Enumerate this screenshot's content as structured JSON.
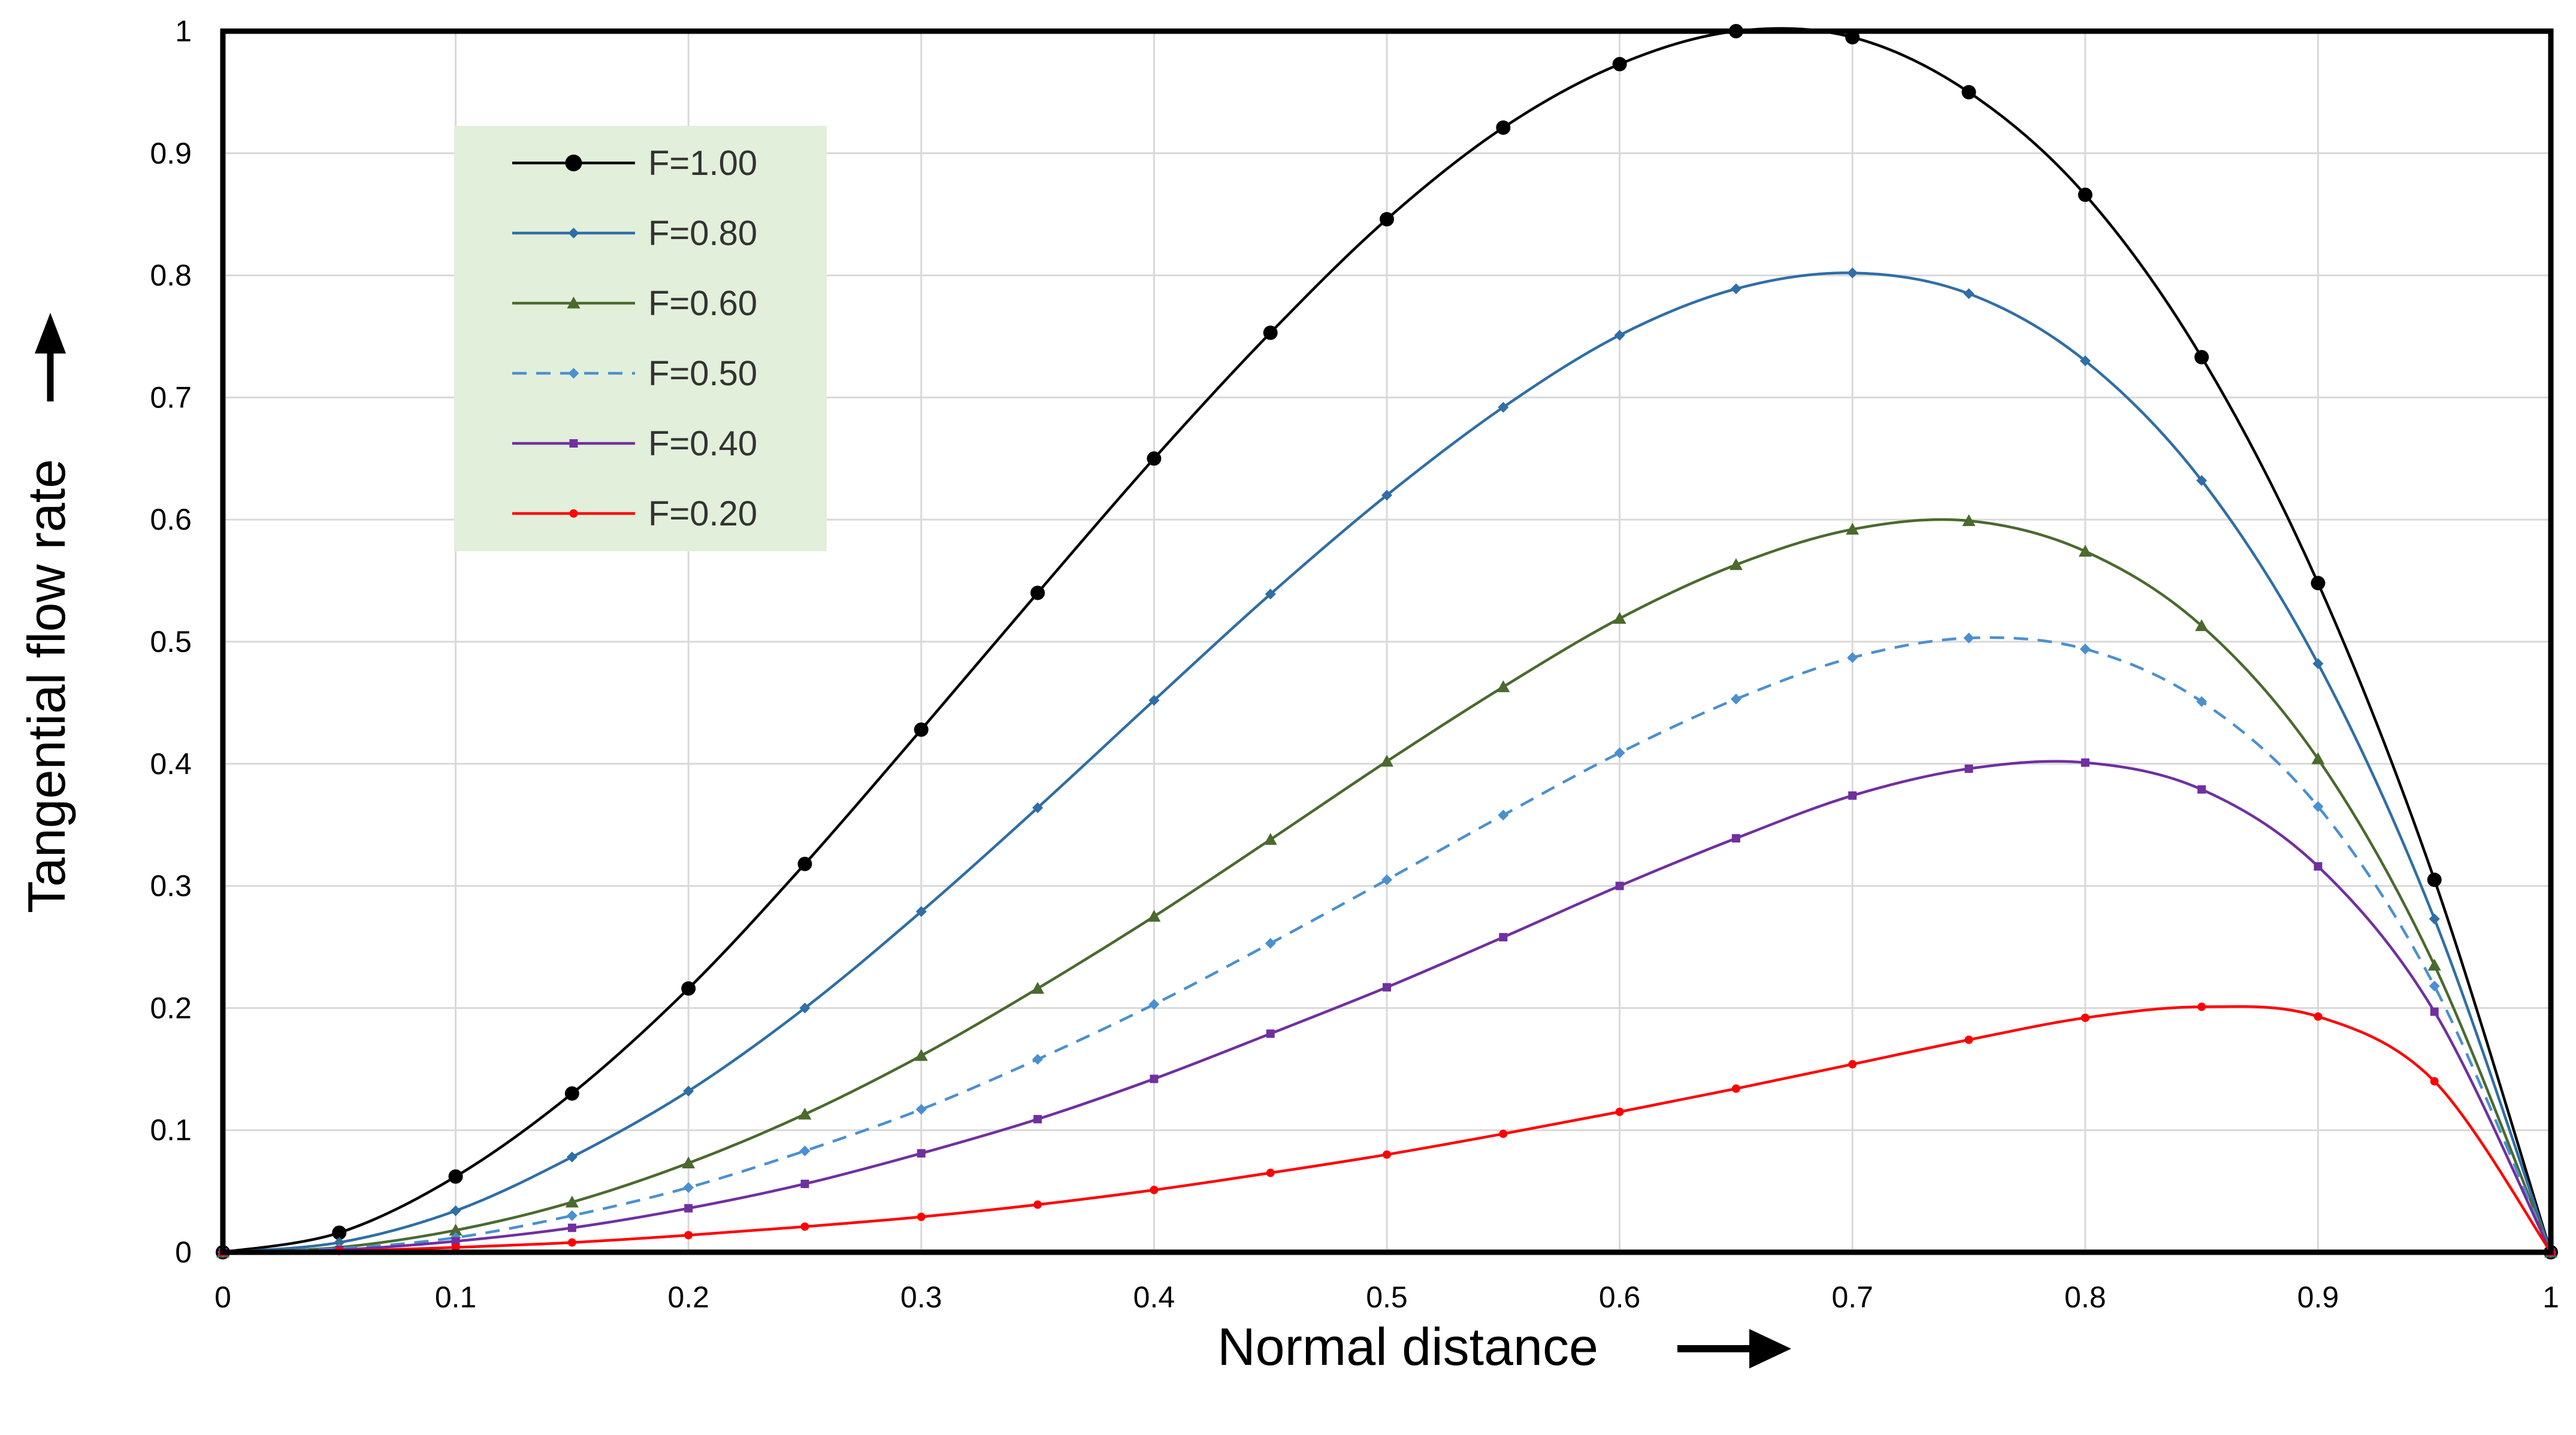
{
  "chart_data": {
    "type": "line",
    "title": "",
    "xlabel": "Normal distance",
    "ylabel": "Tangential flow rate",
    "xlim": [
      0,
      1
    ],
    "ylim": [
      0,
      1
    ],
    "grid": true,
    "legend_position": "top-left",
    "x_ticks": [
      "0",
      "0.1",
      "0.2",
      "0.3",
      "0.4",
      "0.5",
      "0.6",
      "0.7",
      "0.8",
      "0.9",
      "1"
    ],
    "y_ticks": [
      "0",
      "0.1",
      "0.2",
      "0.3",
      "0.4",
      "0.5",
      "0.6",
      "0.7",
      "0.8",
      "0.9",
      "1"
    ],
    "x": [
      0,
      0.05,
      0.1,
      0.15,
      0.2,
      0.25,
      0.3,
      0.35,
      0.4,
      0.45,
      0.5,
      0.55,
      0.6,
      0.65,
      0.7,
      0.75,
      0.8,
      0.85,
      0.9,
      0.95,
      1
    ],
    "series": [
      {
        "name": "F=1.00",
        "color": "#000000",
        "dash": false,
        "marker": "circle",
        "values": [
          0,
          0.016,
          0.062,
          0.13,
          0.216,
          0.318,
          0.428,
          0.54,
          0.65,
          0.753,
          0.846,
          0.921,
          0.973,
          1.0,
          0.995,
          0.95,
          0.866,
          0.733,
          0.548,
          0.305,
          0
        ]
      },
      {
        "name": "F=0.80",
        "color": "#2f6ea6",
        "dash": false,
        "marker": "diamond",
        "values": [
          0,
          0.008,
          0.034,
          0.078,
          0.132,
          0.2,
          0.279,
          0.364,
          0.452,
          0.539,
          0.62,
          0.692,
          0.751,
          0.789,
          0.802,
          0.785,
          0.73,
          0.632,
          0.482,
          0.273,
          0
        ]
      },
      {
        "name": "F=0.60",
        "color": "#4a6a2e",
        "dash": false,
        "marker": "triangle",
        "values": [
          0,
          0.004,
          0.018,
          0.041,
          0.073,
          0.113,
          0.161,
          0.216,
          0.275,
          0.338,
          0.402,
          0.463,
          0.519,
          0.563,
          0.592,
          0.599,
          0.574,
          0.513,
          0.404,
          0.235,
          0
        ]
      },
      {
        "name": "F=0.50",
        "color": "#4a90d0",
        "dash": true,
        "marker": "diamond",
        "values": [
          0,
          0.003,
          0.012,
          0.03,
          0.053,
          0.083,
          0.117,
          0.158,
          0.203,
          0.253,
          0.305,
          0.358,
          0.409,
          0.453,
          0.487,
          0.503,
          0.494,
          0.451,
          0.365,
          0.218,
          0
        ]
      },
      {
        "name": "F=0.40",
        "color": "#7030a0",
        "dash": false,
        "marker": "square",
        "values": [
          0,
          0.002,
          0.009,
          0.02,
          0.036,
          0.056,
          0.081,
          0.109,
          0.142,
          0.179,
          0.217,
          0.258,
          0.3,
          0.339,
          0.374,
          0.396,
          0.401,
          0.379,
          0.316,
          0.197,
          0
        ]
      },
      {
        "name": "F=0.20",
        "color": "#ff0000",
        "dash": false,
        "marker": "dot",
        "values": [
          0,
          0.001,
          0.004,
          0.008,
          0.014,
          0.021,
          0.029,
          0.039,
          0.051,
          0.065,
          0.08,
          0.097,
          0.115,
          0.134,
          0.154,
          0.174,
          0.192,
          0.201,
          0.193,
          0.14,
          0
        ]
      }
    ]
  },
  "colors": {
    "legend_background": "#e2efda",
    "grid": "#d9d9d9",
    "plot_border": "#000000"
  }
}
